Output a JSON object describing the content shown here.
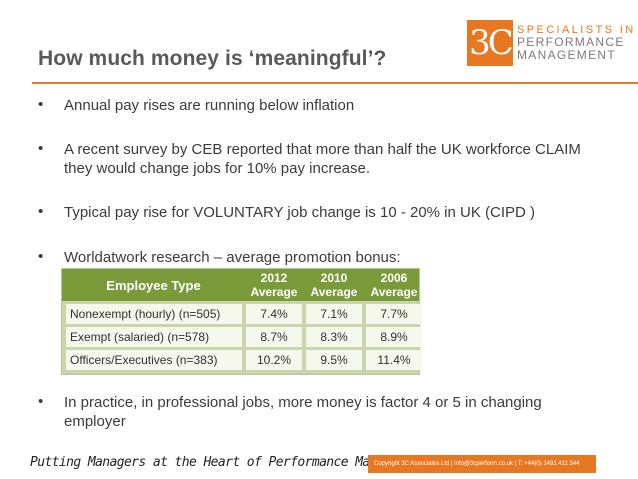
{
  "slide": {
    "title": "How much money is ‘meaningful’?"
  },
  "logo": {
    "mark": "3C",
    "line1": "SPECIALISTS IN",
    "line2": "PERFORMANCE",
    "line3": "MANAGEMENT",
    "accent_color": "#e87722"
  },
  "bullets": [
    {
      "text": "Annual pay rises are running below inflation"
    },
    {
      "text": "A recent survey by CEB reported that more than half the UK workforce CLAIM they would change jobs for 10% pay increase."
    },
    {
      "text": "Typical pay rise for VOLUNTARY job change is 10 - 20% in UK (CIPD )"
    },
    {
      "text": "Worldatwork research – average promotion bonus:"
    },
    {
      "text": "In practice, in professional jobs, more money is factor 4 or 5 in changing employer"
    }
  ],
  "table": {
    "header_type": "Employee Type",
    "columns": [
      {
        "year": "2012",
        "label": "Average"
      },
      {
        "year": "2010",
        "label": "Average"
      },
      {
        "year": "2006",
        "label": "Average"
      }
    ],
    "rows": [
      {
        "type": "Nonexempt (hourly) (n=505)",
        "values": [
          "7.4%",
          "7.1%",
          "7.7%"
        ]
      },
      {
        "type": "Exempt (salaried) (n=578)",
        "values": [
          "8.7%",
          "8.3%",
          "8.9%"
        ]
      },
      {
        "type": "Officers/Executives (n=383)",
        "values": [
          "10.2%",
          "9.5%",
          "11.4%"
        ]
      }
    ],
    "header_color": "#7a9a3a"
  },
  "footer": {
    "tagline": "Putting Managers at the Heart of Performance Management",
    "copyright": "Copyright 3C Associates Ltd  |  info@3cperform.co.uk  |  T: +44(0) 1491 411 544"
  }
}
